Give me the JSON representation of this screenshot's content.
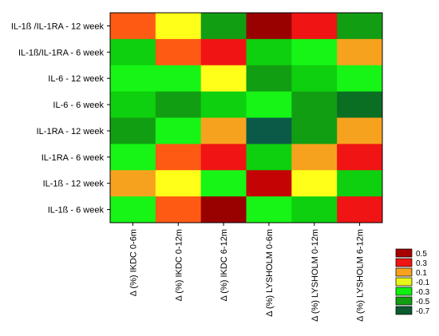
{
  "chart_data": {
    "type": "heatmap",
    "title": "",
    "xlabel": "",
    "ylabel": "",
    "rows": [
      "IL-1ß /IL-1RA - 12 week",
      "IL-1ß/IL-1RA - 6 week",
      "IL-6 - 12 week",
      "IL-6 - 6 week",
      "IL-1RA - 12 week",
      "IL-1RA - 6 week",
      "IL-1ß - 12 week",
      "IL-1ß - 6 week"
    ],
    "columns": [
      "Δ (%) IKDC 0-6m",
      "Δ (%) IKDC 0-12m",
      "Δ (%) IKDC 6-12m",
      "Δ (%) LYSHOLM 0-6m",
      "Δ (%) LYSHOLM 0-12m",
      "Δ (%) LYSHOLM 6-12m"
    ],
    "values": [
      [
        0.25,
        -0.05,
        -0.45,
        0.55,
        0.35,
        -0.45
      ],
      [
        -0.35,
        0.25,
        0.35,
        -0.35,
        -0.25,
        0.15
      ],
      [
        -0.25,
        -0.25,
        -0.05,
        -0.45,
        -0.35,
        -0.25
      ],
      [
        -0.35,
        -0.45,
        -0.35,
        -0.25,
        -0.45,
        -0.65
      ],
      [
        -0.45,
        -0.25,
        0.15,
        -0.75,
        -0.45,
        0.15
      ],
      [
        -0.25,
        0.25,
        0.35,
        -0.35,
        0.15,
        0.35
      ],
      [
        0.15,
        -0.05,
        -0.25,
        0.45,
        -0.05,
        -0.35
      ],
      [
        -0.25,
        0.25,
        0.55,
        -0.25,
        -0.35,
        0.35
      ]
    ],
    "legend": {
      "placement": "bottom-right",
      "entries": [
        {
          "label": "0.5",
          "color": "#a80000"
        },
        {
          "label": "0.3",
          "color": "#f01414"
        },
        {
          "label": "0.1",
          "color": "#f7a21e"
        },
        {
          "label": "-0.1",
          "color": "#e8f51a"
        },
        {
          "label": "-0.3",
          "color": "#10f010"
        },
        {
          "label": "-0.5",
          "color": "#119e11"
        },
        {
          "label": "-0.7",
          "color": "#0b5a30"
        }
      ]
    },
    "colors": {
      "0.55": "#990000",
      "0.45": "#c40404",
      "0.35": "#f01414",
      "0.25": "#ff5a14",
      "0.15": "#f7a21e",
      "-0.05": "#ffff19",
      "-0.25": "#16f516",
      "-0.35": "#0ed00e",
      "-0.45": "#129e12",
      "-0.65": "#0a6e23",
      "-0.75": "#0b5a48"
    }
  }
}
